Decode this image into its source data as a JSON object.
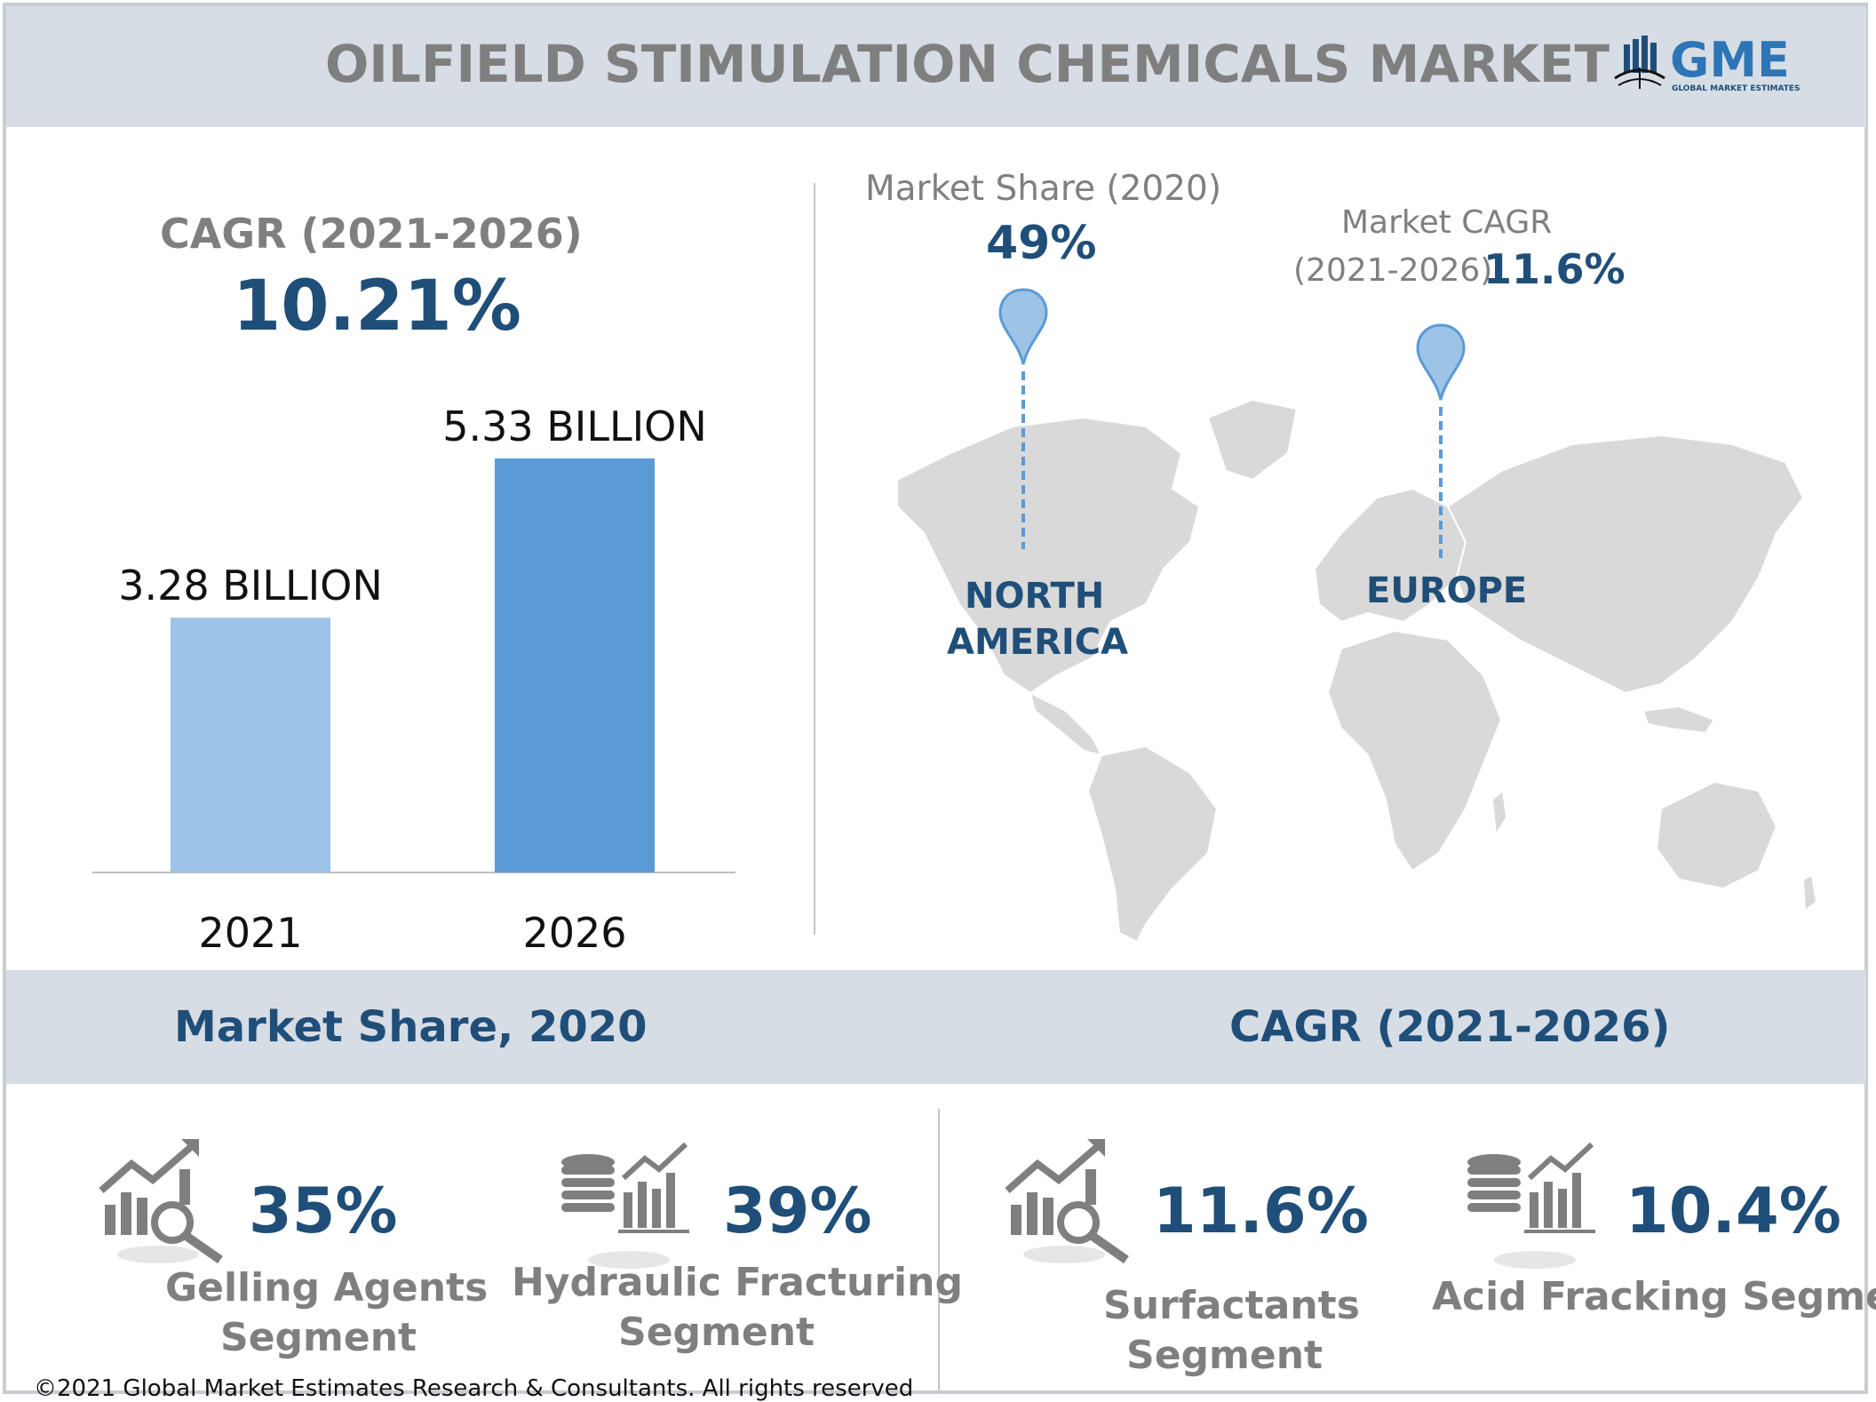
{
  "header": {
    "title": "OILFIELD STIMULATION CHEMICALS MARKET",
    "logo_text": "GME",
    "logo_subtext": "GLOBAL MARKET ESTIMATES"
  },
  "left_panel": {
    "cagr_label": "CAGR (2021-2026)",
    "cagr_value": "10.21%"
  },
  "chart_data": {
    "type": "bar",
    "categories": [
      "2021",
      "2026"
    ],
    "values": [
      3.28,
      5.33
    ],
    "data_labels": [
      "3.28 BILLION",
      "5.33 BILLION"
    ],
    "unit": "BILLION",
    "colors": [
      "#9dc3e6",
      "#5b9bd5"
    ],
    "grid": false
  },
  "map_panel": {
    "north_america": {
      "caption": "Market Share (2020)",
      "value": "49%",
      "region_line1": "NORTH",
      "region_line2": "AMERICA"
    },
    "europe": {
      "caption_line1": "Market CAGR",
      "caption_line2": "(2021-2026)",
      "value": "11.6%",
      "region": "EUROPE"
    },
    "map_color": "#d9d9d9",
    "pin_color": "#9dc3e6"
  },
  "bottom": {
    "left_header": "Market Share, 2020",
    "right_header": "CAGR (2021-2026)",
    "stats": [
      {
        "value": "35%",
        "line1": "Gelling Agents",
        "line2": "Segment",
        "icon": "chart-magnifier-icon"
      },
      {
        "value": "39%",
        "line1": "Hydraulic Fracturing",
        "line2": "Segment",
        "icon": "coins-chart-icon"
      },
      {
        "value": "11.6%",
        "line1": "Surfactants",
        "line2": "Segment",
        "icon": "chart-magnifier-icon"
      },
      {
        "value": "10.4%",
        "line1": "Acid Fracking Segment",
        "line2": "",
        "icon": "coins-chart-icon"
      }
    ]
  },
  "footer": {
    "copyright": "©2021 Global Market Estimates Research & Consultants. All rights reserved"
  },
  "colors": {
    "band": "#d7dde5",
    "title_gray": "#7f7f7f",
    "accent_navy": "#1f4e79"
  }
}
